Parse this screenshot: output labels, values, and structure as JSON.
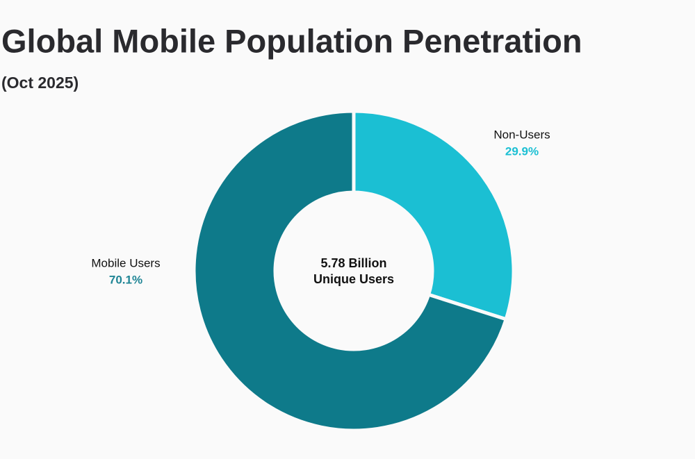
{
  "chart_data": {
    "type": "donut",
    "title": "Global Mobile Population Penetration",
    "subtitle": "(Oct 2025)",
    "categories": [
      "Non-Users",
      "Mobile Users"
    ],
    "values": [
      29.9,
      70.1
    ],
    "value_labels": [
      "29.9%",
      "70.1%"
    ],
    "colors": [
      "#1bbfd3",
      "#0e7a8a"
    ],
    "label_colors": [
      "#1bbfd3",
      "#1f8595"
    ],
    "center_label": [
      "5.78 Billion",
      "Unique Users"
    ]
  }
}
